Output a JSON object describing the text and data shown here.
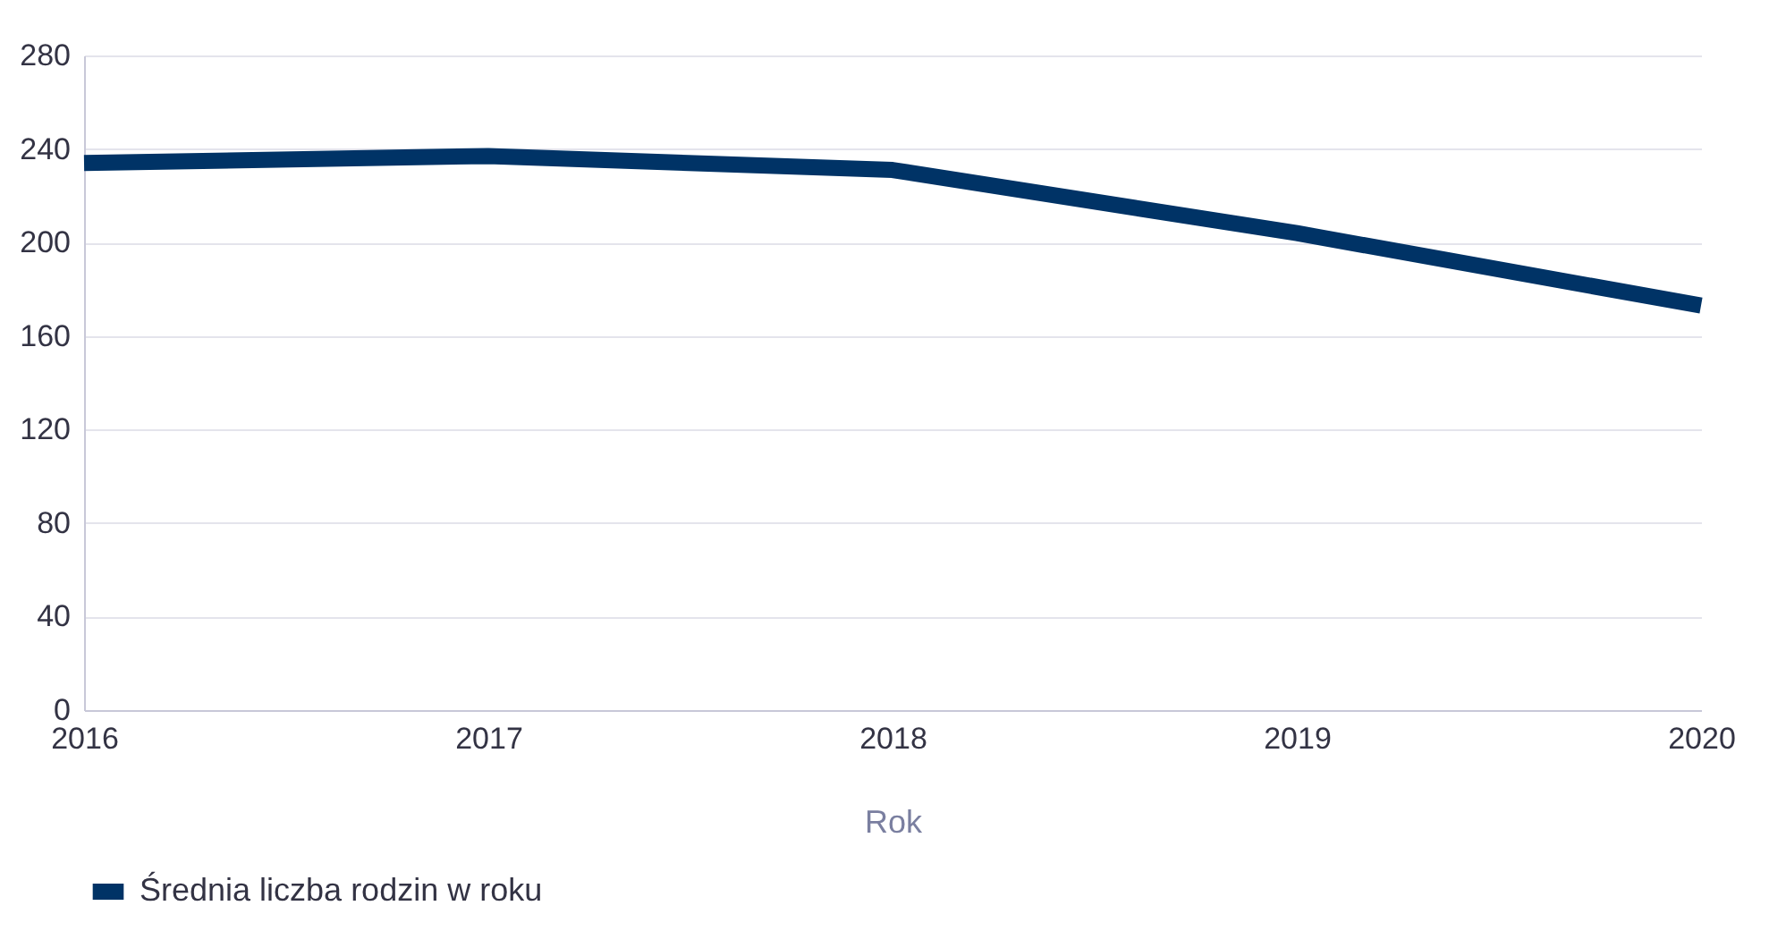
{
  "chart_data": {
    "type": "line",
    "xlabel": "Rok",
    "categories": [
      "2016",
      "2017",
      "2018",
      "2019",
      "2020"
    ],
    "series": [
      {
        "name": "Średnia liczba rodzin w roku",
        "color": "#003366",
        "values": [
          234,
          237,
          231,
          204,
          173
        ]
      }
    ],
    "ylim": [
      0,
      280
    ],
    "yticks": [
      0,
      40,
      80,
      120,
      160,
      200,
      240,
      280
    ],
    "grid": "y",
    "legend": "bottom",
    "marker": "none",
    "line_style": "solid"
  }
}
